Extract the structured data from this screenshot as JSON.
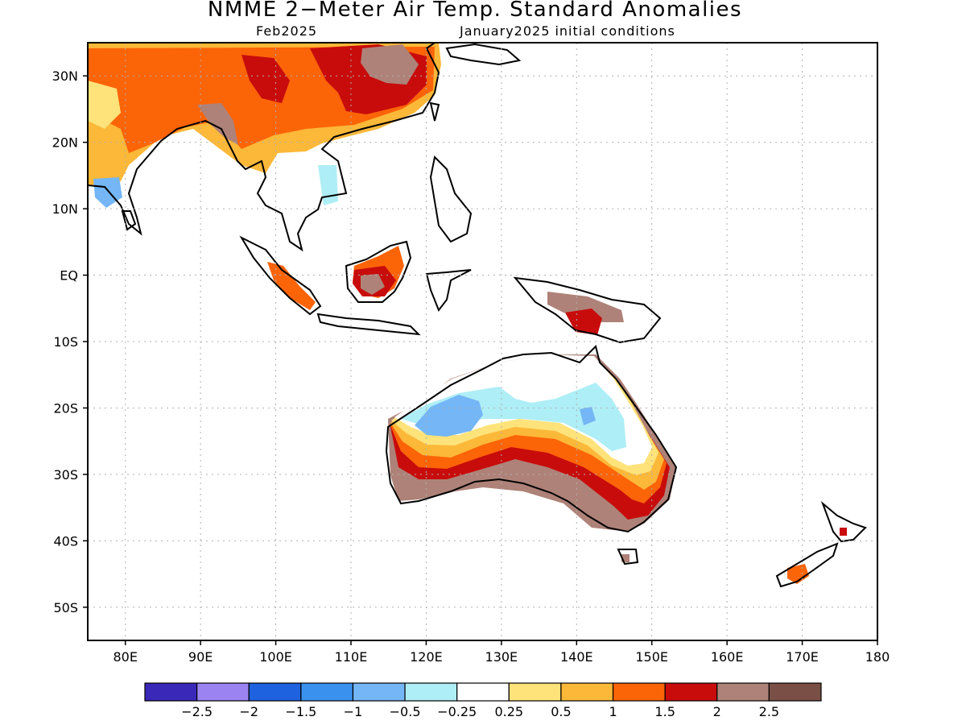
{
  "title": "NMME 2−Meter Air Temp. Standard Anomalies",
  "forecast_month": "Feb2025",
  "initial_conditions": "January2025 initial conditions",
  "map": {
    "lon_range": [
      75,
      180
    ],
    "lat_range": [
      -55,
      35
    ],
    "lon_labels": [
      {
        "lon": 80,
        "label": "80E"
      },
      {
        "lon": 90,
        "label": "90E"
      },
      {
        "lon": 100,
        "label": "100E"
      },
      {
        "lon": 110,
        "label": "110E"
      },
      {
        "lon": 120,
        "label": "120E"
      },
      {
        "lon": 130,
        "label": "130E"
      },
      {
        "lon": 140,
        "label": "140E"
      },
      {
        "lon": 150,
        "label": "150E"
      },
      {
        "lon": 160,
        "label": "160E"
      },
      {
        "lon": 170,
        "label": "170E"
      },
      {
        "lon": 180,
        "label": "180"
      }
    ],
    "lat_labels": [
      {
        "lat": 30,
        "label": "30N"
      },
      {
        "lat": 20,
        "label": "20N"
      },
      {
        "lat": 10,
        "label": "10N"
      },
      {
        "lat": 0,
        "label": "EQ"
      },
      {
        "lat": -10,
        "label": "10S"
      },
      {
        "lat": -20,
        "label": "20S"
      },
      {
        "lat": -30,
        "label": "30S"
      },
      {
        "lat": -40,
        "label": "40S"
      },
      {
        "lat": -50,
        "label": "50S"
      }
    ],
    "gridlines": "dotted"
  },
  "legend": {
    "colors": [
      "#3a28b8",
      "#9b84f2",
      "#1f62e0",
      "#3a92ee",
      "#74b6f6",
      "#aeeef6",
      "#ffffff",
      "#fee27a",
      "#fcb838",
      "#fc6408",
      "#c80c0c",
      "#ae8278",
      "#7a5046"
    ],
    "labels": [
      "−2.5",
      "−2",
      "−1.5",
      "−1",
      "−0.5",
      "−0.25",
      "0.25",
      "0.5",
      "1",
      "1.5",
      "2",
      "2.5"
    ]
  }
}
